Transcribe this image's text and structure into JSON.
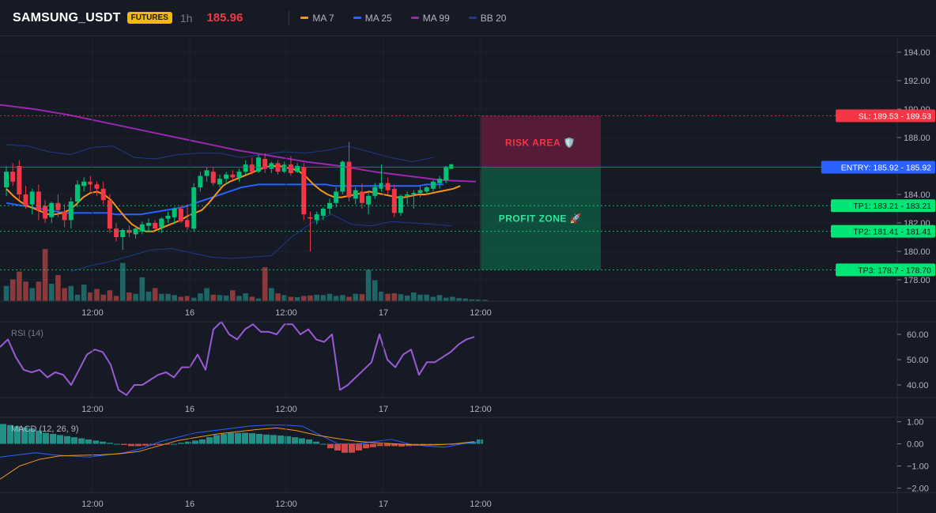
{
  "header": {
    "symbol": "SAMSUNG_USDT",
    "badge": "FUTURES",
    "timeframe": "1h",
    "last_price": "185.96",
    "legend": [
      {
        "label": "MA 7",
        "color": "#f7931a"
      },
      {
        "label": "MA 25",
        "color": "#2962ff"
      },
      {
        "label": "MA 99",
        "color": "#9c27b0"
      },
      {
        "label": "BB 20",
        "color": "#1e3a8a"
      }
    ]
  },
  "colors": {
    "up": "#00c176",
    "down": "#f23645",
    "rsi": "#9b59d6",
    "macd": "#2962ff",
    "signal": "#f7931a"
  },
  "chart_data": [
    {
      "type": "candlestick",
      "title": "SAMSUNG_USDT 1h",
      "ylim": [
        176.5,
        195
      ],
      "yticks": [
        "194.00",
        "192.00",
        "190.00",
        "188.00",
        "186.00",
        "184.00",
        "182.00",
        "180.00",
        "178.00"
      ],
      "x_labels": [
        "12:00",
        "16",
        "12:00",
        "17",
        "12:00"
      ],
      "candles": [
        {
          "o": 184.5,
          "h": 186.0,
          "l": 183.9,
          "c": 185.6
        },
        {
          "o": 185.6,
          "h": 186.2,
          "l": 184.6,
          "c": 184.9
        },
        {
          "o": 186.0,
          "h": 186.4,
          "l": 183.6,
          "c": 184.0
        },
        {
          "o": 184.0,
          "h": 184.6,
          "l": 183.0,
          "c": 183.2
        },
        {
          "o": 183.3,
          "h": 184.4,
          "l": 182.6,
          "c": 184.2
        },
        {
          "o": 184.2,
          "h": 184.7,
          "l": 182.2,
          "c": 182.9
        },
        {
          "o": 183.2,
          "h": 183.6,
          "l": 182.0,
          "c": 182.3
        },
        {
          "o": 182.4,
          "h": 183.5,
          "l": 182.0,
          "c": 183.4
        },
        {
          "o": 183.4,
          "h": 184.0,
          "l": 182.4,
          "c": 182.9
        },
        {
          "o": 182.8,
          "h": 183.3,
          "l": 181.7,
          "c": 182.2
        },
        {
          "o": 182.2,
          "h": 183.8,
          "l": 181.6,
          "c": 183.5
        },
        {
          "o": 183.5,
          "h": 185.0,
          "l": 183.1,
          "c": 184.7
        },
        {
          "o": 184.6,
          "h": 185.2,
          "l": 184.2,
          "c": 184.9
        },
        {
          "o": 184.9,
          "h": 185.3,
          "l": 184.2,
          "c": 184.7
        },
        {
          "o": 184.7,
          "h": 184.9,
          "l": 183.9,
          "c": 184.4
        },
        {
          "o": 184.4,
          "h": 184.9,
          "l": 183.3,
          "c": 183.6
        },
        {
          "o": 183.6,
          "h": 184.0,
          "l": 181.3,
          "c": 181.6
        },
        {
          "o": 181.6,
          "h": 182.0,
          "l": 180.7,
          "c": 181.0
        },
        {
          "o": 181.0,
          "h": 181.6,
          "l": 180.1,
          "c": 181.5
        },
        {
          "o": 181.5,
          "h": 181.8,
          "l": 181.0,
          "c": 181.3
        },
        {
          "o": 181.2,
          "h": 181.8,
          "l": 180.9,
          "c": 181.6
        },
        {
          "o": 181.4,
          "h": 182.1,
          "l": 181.2,
          "c": 181.9
        },
        {
          "o": 181.8,
          "h": 182.3,
          "l": 181.4,
          "c": 182.0
        },
        {
          "o": 182.0,
          "h": 182.2,
          "l": 181.5,
          "c": 181.6
        },
        {
          "o": 181.7,
          "h": 182.4,
          "l": 181.3,
          "c": 182.3
        },
        {
          "o": 182.3,
          "h": 182.8,
          "l": 182.0,
          "c": 182.5
        },
        {
          "o": 182.4,
          "h": 183.1,
          "l": 181.9,
          "c": 183.0
        },
        {
          "o": 183.0,
          "h": 183.2,
          "l": 182.0,
          "c": 182.1
        },
        {
          "o": 182.2,
          "h": 183.3,
          "l": 181.5,
          "c": 181.7
        },
        {
          "o": 181.6,
          "h": 184.8,
          "l": 181.4,
          "c": 184.5
        },
        {
          "o": 184.5,
          "h": 185.6,
          "l": 184.2,
          "c": 185.3
        },
        {
          "o": 185.3,
          "h": 185.9,
          "l": 184.9,
          "c": 185.7
        },
        {
          "o": 185.6,
          "h": 185.9,
          "l": 184.6,
          "c": 184.8
        },
        {
          "o": 184.7,
          "h": 185.4,
          "l": 184.5,
          "c": 185.1
        },
        {
          "o": 185.1,
          "h": 185.6,
          "l": 184.7,
          "c": 185.4
        },
        {
          "o": 185.4,
          "h": 185.7,
          "l": 185.0,
          "c": 185.2
        },
        {
          "o": 185.2,
          "h": 185.8,
          "l": 184.9,
          "c": 185.6
        },
        {
          "o": 185.6,
          "h": 186.4,
          "l": 185.4,
          "c": 186.1
        },
        {
          "o": 186.1,
          "h": 186.6,
          "l": 185.4,
          "c": 185.6
        },
        {
          "o": 185.6,
          "h": 186.8,
          "l": 185.5,
          "c": 186.6
        },
        {
          "o": 186.5,
          "h": 186.9,
          "l": 185.5,
          "c": 185.8
        },
        {
          "o": 185.8,
          "h": 186.3,
          "l": 185.5,
          "c": 186.2
        },
        {
          "o": 186.2,
          "h": 186.4,
          "l": 185.4,
          "c": 185.6
        },
        {
          "o": 185.6,
          "h": 186.3,
          "l": 185.5,
          "c": 186.1
        },
        {
          "o": 186.1,
          "h": 186.7,
          "l": 185.3,
          "c": 185.5
        },
        {
          "o": 185.6,
          "h": 186.2,
          "l": 185.5,
          "c": 186.0
        },
        {
          "o": 185.9,
          "h": 186.2,
          "l": 182.2,
          "c": 182.6
        },
        {
          "o": 182.4,
          "h": 182.8,
          "l": 180.0,
          "c": 182.3
        },
        {
          "o": 182.2,
          "h": 182.8,
          "l": 181.9,
          "c": 182.6
        },
        {
          "o": 182.5,
          "h": 183.1,
          "l": 182.2,
          "c": 183.0
        },
        {
          "o": 183.0,
          "h": 183.7,
          "l": 182.6,
          "c": 183.4
        },
        {
          "o": 183.4,
          "h": 184.5,
          "l": 183.1,
          "c": 184.2
        },
        {
          "o": 184.2,
          "h": 186.4,
          "l": 184.0,
          "c": 186.3
        },
        {
          "o": 186.3,
          "h": 187.7,
          "l": 183.5,
          "c": 183.8
        },
        {
          "o": 183.7,
          "h": 184.5,
          "l": 183.3,
          "c": 184.3
        },
        {
          "o": 184.2,
          "h": 184.8,
          "l": 183.0,
          "c": 183.4
        },
        {
          "o": 183.3,
          "h": 184.1,
          "l": 182.6,
          "c": 183.9
        },
        {
          "o": 183.9,
          "h": 184.8,
          "l": 183.7,
          "c": 184.5
        },
        {
          "o": 184.4,
          "h": 186.1,
          "l": 184.2,
          "c": 184.8
        },
        {
          "o": 184.8,
          "h": 185.2,
          "l": 184.0,
          "c": 184.3
        },
        {
          "o": 184.4,
          "h": 184.7,
          "l": 182.4,
          "c": 182.7
        },
        {
          "o": 182.7,
          "h": 184.0,
          "l": 182.5,
          "c": 183.9
        },
        {
          "o": 183.9,
          "h": 184.2,
          "l": 183.3,
          "c": 184.0
        },
        {
          "o": 184.0,
          "h": 184.3,
          "l": 183.0,
          "c": 184.1
        },
        {
          "o": 184.1,
          "h": 184.6,
          "l": 183.8,
          "c": 184.3
        },
        {
          "o": 184.2,
          "h": 184.6,
          "l": 184.0,
          "c": 184.5
        },
        {
          "o": 184.4,
          "h": 185.0,
          "l": 184.2,
          "c": 184.9
        },
        {
          "o": 184.8,
          "h": 185.3,
          "l": 184.4,
          "c": 185.1
        },
        {
          "o": 185.0,
          "h": 186.0,
          "l": 184.8,
          "c": 185.96
        }
      ],
      "volume": [
        35,
        50,
        68,
        45,
        30,
        45,
        120,
        40,
        60,
        30,
        35,
        15,
        38,
        20,
        28,
        15,
        25,
        12,
        88,
        20,
        17,
        55,
        22,
        30,
        17,
        17,
        14,
        10,
        12,
        8,
        18,
        30,
        15,
        14,
        13,
        25,
        12,
        18,
        10,
        6,
        78,
        30,
        18,
        14,
        10,
        9,
        12,
        13,
        15,
        14,
        17,
        12,
        14,
        10,
        17,
        16,
        72,
        48,
        22,
        17,
        18,
        16,
        13,
        20,
        15,
        15,
        10,
        14,
        8,
        10,
        7,
        6,
        4,
        4,
        3
      ],
      "ma7": [
        184.4,
        183.9,
        183.5,
        183.2,
        183.0,
        182.8,
        182.6,
        182.6,
        182.7,
        182.9,
        183.3,
        183.8,
        184.1,
        184.2,
        184.0,
        183.6,
        183.0,
        182.4,
        181.9,
        181.6,
        181.4,
        181.4,
        181.6,
        181.8,
        182.0,
        182.2,
        182.5,
        182.7,
        182.9,
        183.4,
        184.0,
        184.6,
        184.9,
        185.1,
        185.3,
        185.5,
        185.7,
        185.9,
        186.0,
        186.0,
        185.9,
        185.8,
        185.6,
        185.2,
        184.7,
        184.3,
        184.0,
        183.8,
        183.8,
        183.9,
        184.0,
        184.1,
        184.2,
        184.1,
        184.0,
        183.9,
        183.8,
        183.8,
        183.9,
        184.0,
        184.0,
        184.1,
        184.2,
        184.3,
        184.4,
        184.6
      ],
      "ma25": [
        183.4,
        183.3,
        183.2,
        183.1,
        183.0,
        182.9,
        182.8,
        182.7,
        182.7,
        182.7,
        182.7,
        182.7,
        182.7,
        182.6,
        182.6,
        182.6,
        182.6,
        182.7,
        182.8,
        182.9,
        183.0,
        183.1,
        183.3,
        183.5,
        183.7,
        183.9,
        184.1,
        184.3,
        184.5,
        184.6,
        184.7,
        184.7,
        184.7,
        184.7,
        184.7,
        184.7,
        184.7,
        184.7,
        184.7,
        184.6,
        184.6,
        184.6,
        184.6,
        184.6,
        184.6,
        184.6,
        184.6,
        184.6,
        184.6,
        184.6,
        184.7,
        184.7,
        184.7
      ],
      "ma99": [
        190.3,
        190.0,
        189.6,
        189.1,
        188.6,
        188.1,
        187.6,
        187.1,
        186.7,
        186.3,
        186.0,
        185.6,
        185.3,
        185.0,
        184.9
      ],
      "bb_upper": [
        187.5,
        187.4,
        187.0,
        186.8,
        187.3,
        187.4,
        186.6,
        186.5,
        186.8,
        186.9,
        186.9,
        186.6,
        186.8,
        187.0,
        186.9,
        187.1,
        187.4,
        187.0,
        186.6,
        186.3,
        186.6
      ],
      "bb_lower": [
        178.6,
        179.0,
        179.3,
        179.7,
        180.1,
        180.2,
        179.9,
        179.6,
        179.5,
        179.6,
        179.7,
        181.0,
        182.0,
        182.6,
        181.9,
        181.8,
        182.1,
        182.0,
        181.9,
        181.8
      ],
      "levels": [
        {
          "name": "SL",
          "label": "SL: 189.53 - 189.53",
          "value": 189.53,
          "color": "#f23645"
        },
        {
          "name": "ENTRY",
          "label": "ENTRY: 185.92 - 185.92",
          "value": 185.92,
          "color": "#2962ff"
        },
        {
          "name": "TP1",
          "label": "TP1: 183.21 - 183.21",
          "value": 183.21,
          "color": "#00e676"
        },
        {
          "name": "TP2",
          "label": "TP2: 181.41 - 181.41",
          "value": 181.41,
          "color": "#00e676"
        },
        {
          "name": "TP3",
          "label": "TP3: 178.7 - 178.70",
          "value": 178.7,
          "color": "#00e676"
        }
      ],
      "zones": [
        {
          "label": "RISK AREA 🛡️",
          "from": 185.92,
          "to": 189.53
        },
        {
          "label": "PROFIT ZONE 🚀",
          "from": 178.7,
          "to": 185.92
        }
      ]
    },
    {
      "type": "line",
      "title": "RSI (14)",
      "ylim": [
        35,
        65
      ],
      "yticks": [
        "60.00",
        "50.00",
        "40.00"
      ],
      "values": [
        55,
        58,
        51,
        46,
        45,
        46,
        43,
        45,
        44,
        40,
        46,
        52,
        54,
        53,
        48,
        38,
        36,
        40,
        40,
        42,
        44,
        45,
        43,
        47,
        47,
        52,
        46,
        62,
        65,
        60,
        58,
        62,
        64,
        61,
        61,
        60,
        64,
        64,
        60,
        62,
        58,
        57,
        60,
        38,
        40,
        43,
        46,
        49,
        60,
        50,
        47,
        52,
        54,
        44,
        49,
        49,
        51,
        53,
        56,
        58,
        59
      ]
    },
    {
      "type": "bar",
      "title": "MACD (12, 26, 9)",
      "ylim": [
        -2.2,
        1.2
      ],
      "yticks": [
        "1.00",
        "0.00",
        "−1.00",
        "−2.00"
      ],
      "histogram": [
        0.9,
        0.85,
        0.8,
        0.75,
        0.7,
        0.6,
        0.5,
        0.45,
        0.4,
        0.35,
        0.3,
        0.25,
        0.2,
        0.15,
        0.1,
        0.05,
        0.0,
        -0.05,
        -0.1,
        -0.1,
        -0.08,
        -0.06,
        -0.05,
        -0.03,
        0.0,
        0.05,
        0.1,
        0.15,
        0.2,
        0.3,
        0.4,
        0.45,
        0.5,
        0.5,
        0.5,
        0.48,
        0.45,
        0.42,
        0.4,
        0.38,
        0.35,
        0.3,
        0.25,
        0.2,
        0.1,
        0.0,
        -0.2,
        -0.3,
        -0.4,
        -0.4,
        -0.3,
        -0.2,
        -0.15,
        -0.1,
        -0.1,
        -0.1,
        -0.12,
        -0.1,
        -0.08,
        -0.06,
        -0.05,
        -0.04,
        -0.02,
        0.0,
        0.02,
        0.05,
        0.1,
        0.2
      ],
      "macd": [
        -0.6,
        -0.5,
        -0.4,
        -0.5,
        -0.55,
        -0.6,
        -0.5,
        -0.4,
        -0.2,
        0.1,
        0.3,
        0.5,
        0.6,
        0.7,
        0.8,
        0.85,
        0.85,
        0.8,
        0.4,
        0.0,
        0.0,
        0.1,
        0.2,
        0.0,
        -0.1,
        -0.15,
        0.0,
        0.1
      ],
      "signal": [
        -1.6,
        -1.0,
        -0.7,
        -0.55,
        -0.52,
        -0.5,
        -0.45,
        -0.35,
        -0.1,
        0.15,
        0.3,
        0.45,
        0.55,
        0.65,
        0.72,
        0.6,
        0.4,
        0.25,
        0.12,
        0.05,
        0.0,
        -0.05,
        -0.05,
        0.0,
        0.1
      ]
    }
  ]
}
